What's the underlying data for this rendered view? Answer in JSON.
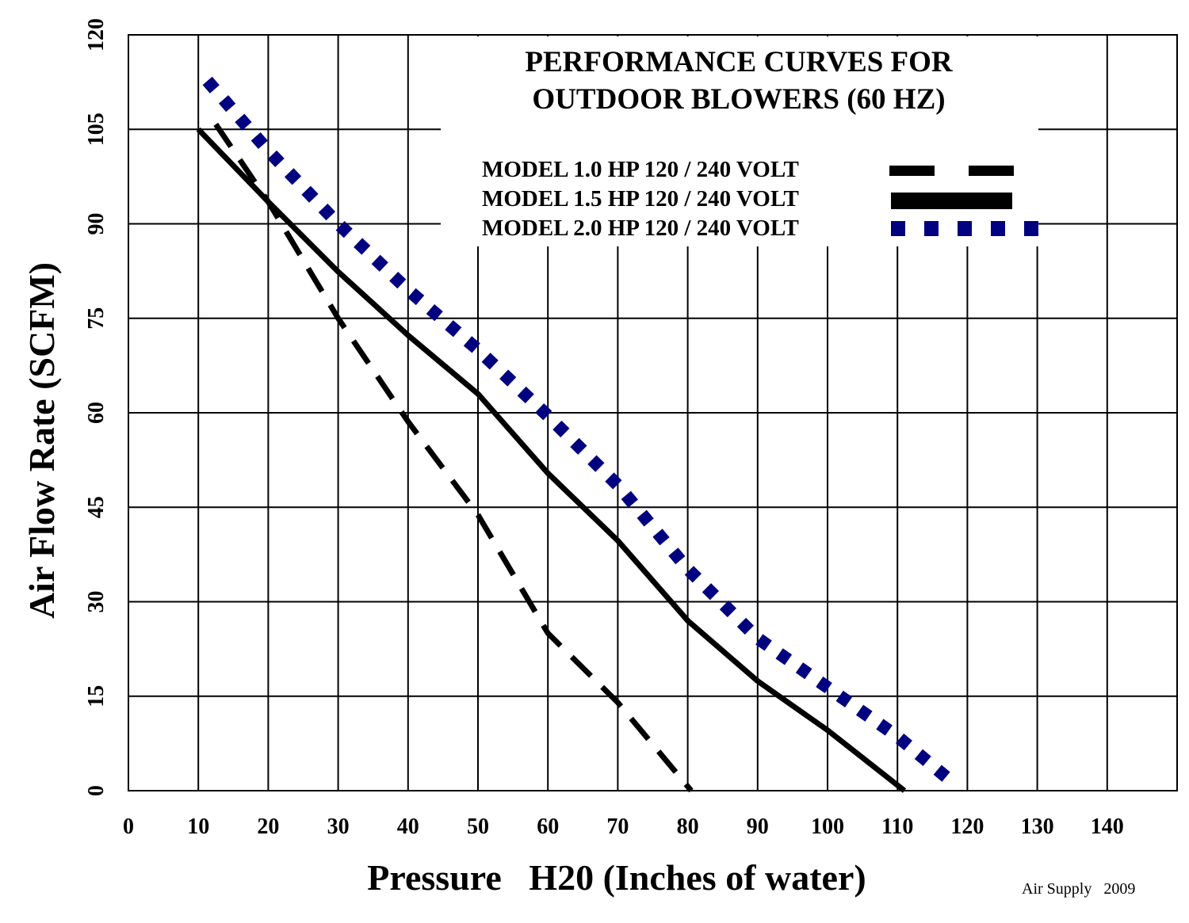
{
  "chart_data": {
    "type": "line",
    "title": [
      "PERFORMANCE CURVES FOR",
      "OUTDOOR  BLOWERS (60 HZ)"
    ],
    "xlabel": "Pressure   H20 (Inches of water)",
    "ylabel": "Air Flow Rate (SCFM)",
    "xlim": [
      0,
      150
    ],
    "ylim": [
      0,
      120
    ],
    "x_ticks": [
      "0",
      "10",
      "20",
      "30",
      "40",
      "50",
      "60",
      "70",
      "80",
      "90",
      "100",
      "110",
      "120",
      "130",
      "140"
    ],
    "x_tick_values": [
      0,
      10,
      20,
      30,
      40,
      50,
      60,
      70,
      80,
      90,
      100,
      110,
      120,
      130,
      140
    ],
    "y_ticks": [
      "0",
      "15",
      "30",
      "45",
      "60",
      "75",
      "90",
      "105",
      "120"
    ],
    "y_tick_values": [
      0,
      15,
      30,
      45,
      60,
      75,
      90,
      105,
      120
    ],
    "grid": true,
    "legend_placement": "top-right",
    "series": [
      {
        "name": "MODEL 1.0 HP 120 / 240 VOLT",
        "style": "dashed",
        "color": "#000000",
        "x": [
          12.5,
          20,
          30,
          40,
          50,
          60,
          70,
          80.5
        ],
        "y": [
          105.8,
          93.5,
          75,
          58.6,
          43.8,
          25,
          14,
          0
        ]
      },
      {
        "name": "MODEL 1.5 HP 120 / 240 VOLT",
        "style": "solid",
        "color": "#000000",
        "x": [
          10,
          20,
          30,
          40,
          50,
          60,
          70,
          80,
          90,
          100,
          111
        ],
        "y": [
          105,
          93.5,
          82.4,
          72.3,
          63,
          50.4,
          39.7,
          27,
          17.4,
          9.6,
          0
        ]
      },
      {
        "name": "MODEL 2.0 HP 120 / 240 VOLT",
        "style": "dotted",
        "color": "#000080",
        "x": [
          11.3,
          20,
          30,
          40,
          50,
          60,
          70,
          80,
          90,
          100,
          110,
          117.7
        ],
        "y": [
          112.7,
          101.6,
          90,
          79.5,
          70,
          59.5,
          48.5,
          35.2,
          24.2,
          16.4,
          8.6,
          1.5
        ]
      }
    ],
    "annotations": [
      "Air Supply   2009"
    ]
  }
}
